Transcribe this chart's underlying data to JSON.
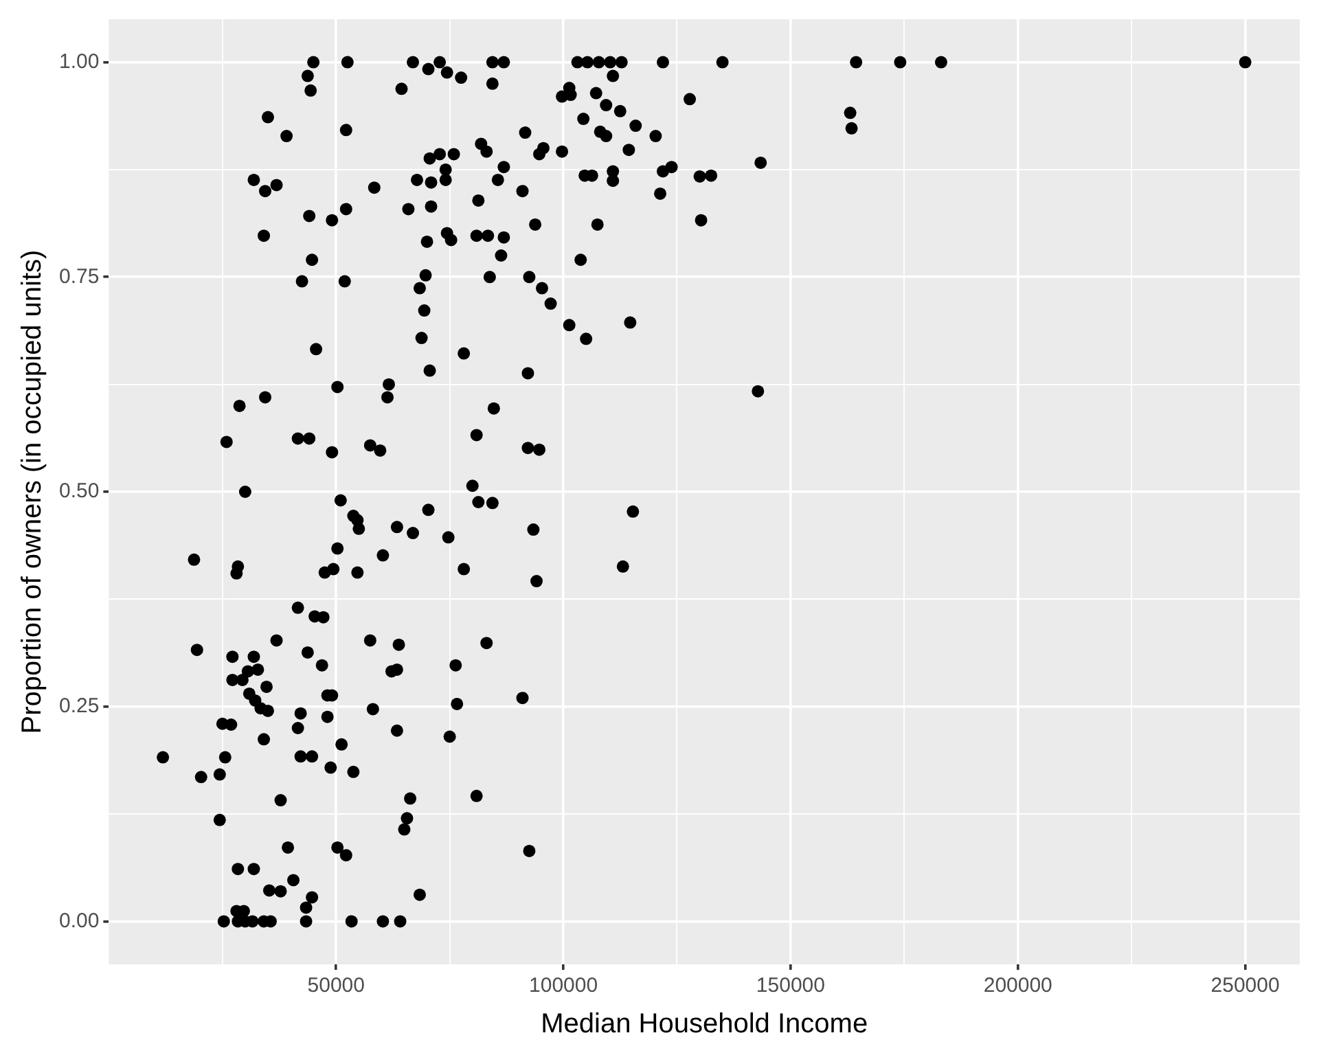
{
  "chart_data": {
    "type": "scatter",
    "xlabel": "Median Household Income",
    "ylabel": "Proportion of owners (in occupied units)",
    "xlim": [
      0,
      262000
    ],
    "ylim": [
      -0.05,
      1.05
    ],
    "xticks": [
      {
        "value": 25000,
        "label": null
      },
      50000,
      {
        "value": 75000,
        "label": null
      },
      100000,
      {
        "value": 125000,
        "label": null
      },
      150000,
      {
        "value": 175000,
        "label": null
      },
      200000,
      {
        "value": 225000,
        "label": null
      },
      250000
    ],
    "yticks": [
      {
        "value": 0,
        "label": "0.00"
      },
      {
        "value": 0.125,
        "label": null
      },
      {
        "value": 0.25,
        "label": "0.25"
      },
      {
        "value": 0.375,
        "label": null
      },
      {
        "value": 0.5,
        "label": "0.50"
      },
      {
        "value": 0.625,
        "label": null
      },
      {
        "value": 0.75,
        "label": "0.75"
      },
      {
        "value": 0.875,
        "label": null
      },
      {
        "value": 1,
        "label": "1.00"
      }
    ],
    "grid": true,
    "marker": "circle",
    "series": [
      {
        "color": "#000000",
        "x": [
          45000,
          52500,
          66900,
          72800,
          84400,
          86900,
          103100,
          105300,
          107800,
          110300,
          112800,
          121900,
          135000,
          164400,
          174100,
          183100,
          250000,
          43750,
          44400,
          64400,
          77500,
          70300,
          74400,
          84400,
          101300,
          101600,
          99700,
          107200,
          110900,
          109400,
          112500,
          104400,
          115900,
          108100,
          109400,
          120300,
          127800,
          163100,
          163400,
          143400,
          35000,
          39100,
          52200,
          31900,
          34400,
          36900,
          34100,
          44100,
          49100,
          52200,
          58400,
          65900,
          67800,
          70600,
          70900,
          70900,
          74100,
          74100,
          72800,
          75900,
          81300,
          81900,
          83100,
          85600,
          86900,
          91000,
          91600,
          94700,
          95600,
          99700,
          93800,
          80900,
          83400,
          86900,
          86300,
          74400,
          75300,
          70000,
          69700,
          83800,
          92500,
          95300,
          97200,
          101300,
          103800,
          105000,
          107500,
          114400,
          110900,
          110900,
          106300,
          104700,
          121300,
          121900,
          123800,
          130000,
          132500,
          130300,
          114700,
          142800,
          42500,
          51900,
          44700,
          68400,
          69400,
          68800,
          70600,
          78100,
          45600,
          34400,
          28750,
          50300,
          61600,
          61300,
          84700,
          92200,
          92200,
          94700,
          80900,
          25900,
          41600,
          44100,
          49100,
          57500,
          59700,
          30000,
          51000,
          53800,
          54700,
          55000,
          63400,
          66900,
          70300,
          80000,
          81300,
          84400,
          74700,
          50300,
          60300,
          115300,
          93400,
          94100,
          113100,
          78100,
          28400,
          28100,
          18750,
          47500,
          49400,
          54700,
          41600,
          45300,
          47200,
          36900,
          57500,
          63800,
          83100,
          19400,
          27200,
          31900,
          30600,
          32800,
          43750,
          46900,
          63400,
          62200,
          27200,
          29400,
          34700,
          30900,
          32200,
          33400,
          35000,
          48100,
          49100,
          42200,
          48100,
          58100,
          76300,
          76600,
          91000,
          75000,
          11900,
          20300,
          24400,
          25000,
          26900,
          25600,
          24400,
          34100,
          37800,
          41600,
          42200,
          44700,
          48800,
          51200,
          53800,
          63400,
          66300,
          65600,
          65000,
          80900,
          39400,
          50300,
          52200,
          92500,
          28400,
          31900,
          35300,
          37800,
          40600,
          44700,
          43400,
          28100,
          68400,
          25300,
          28400,
          30000,
          31600,
          34100,
          35600,
          43400,
          53400,
          60300,
          64100,
          29700
        ],
        "values": [
          1,
          1,
          1,
          1,
          1,
          1,
          1,
          1,
          1,
          1,
          1,
          1,
          1,
          1,
          1,
          1,
          1,
          0.984,
          0.967,
          0.969,
          0.982,
          0.992,
          0.988,
          0.975,
          0.97,
          0.962,
          0.96,
          0.964,
          0.984,
          0.95,
          0.943,
          0.934,
          0.926,
          0.919,
          0.914,
          0.914,
          0.957,
          0.941,
          0.923,
          0.883,
          0.936,
          0.914,
          0.921,
          0.863,
          0.85,
          0.857,
          0.798,
          0.821,
          0.816,
          0.829,
          0.854,
          0.829,
          0.863,
          0.888,
          0.86,
          0.832,
          0.875,
          0.863,
          0.893,
          0.893,
          0.839,
          0.905,
          0.896,
          0.863,
          0.878,
          0.85,
          0.918,
          0.893,
          0.9,
          0.896,
          0.811,
          0.798,
          0.798,
          0.796,
          0.775,
          0.801,
          0.793,
          0.791,
          0.752,
          0.75,
          0.75,
          0.737,
          0.719,
          0.694,
          0.77,
          0.678,
          0.811,
          0.898,
          0.862,
          0.873,
          0.868,
          0.868,
          0.847,
          0.873,
          0.878,
          0.867,
          0.868,
          0.816,
          0.697,
          0.617,
          0.745,
          0.745,
          0.77,
          0.737,
          0.711,
          0.679,
          0.641,
          0.661,
          0.666,
          0.61,
          0.6,
          0.622,
          0.625,
          0.61,
          0.597,
          0.638,
          0.551,
          0.549,
          0.566,
          0.558,
          0.562,
          0.562,
          0.546,
          0.554,
          0.548,
          0.5,
          0.49,
          0.472,
          0.467,
          0.457,
          0.459,
          0.452,
          0.479,
          0.507,
          0.488,
          0.487,
          0.447,
          0.434,
          0.426,
          0.477,
          0.456,
          0.396,
          0.413,
          0.41,
          0.413,
          0.405,
          0.421,
          0.406,
          0.41,
          0.406,
          0.365,
          0.355,
          0.354,
          0.327,
          0.327,
          0.322,
          0.324,
          0.316,
          0.308,
          0.308,
          0.291,
          0.293,
          0.313,
          0.298,
          0.293,
          0.291,
          0.281,
          0.281,
          0.273,
          0.265,
          0.257,
          0.248,
          0.245,
          0.263,
          0.263,
          0.242,
          0.238,
          0.247,
          0.298,
          0.253,
          0.26,
          0.215,
          0.191,
          0.168,
          0.171,
          0.23,
          0.229,
          0.191,
          0.118,
          0.212,
          0.141,
          0.225,
          0.192,
          0.192,
          0.179,
          0.206,
          0.174,
          0.222,
          0.143,
          0.12,
          0.107,
          0.146,
          0.086,
          0.086,
          0.077,
          0.082,
          0.061,
          0.061,
          0.036,
          0.035,
          0.048,
          0.028,
          0.016,
          0.012,
          0.031,
          0,
          0,
          0,
          0,
          0,
          0,
          0,
          0,
          0,
          0,
          0.012
        ]
      }
    ]
  }
}
